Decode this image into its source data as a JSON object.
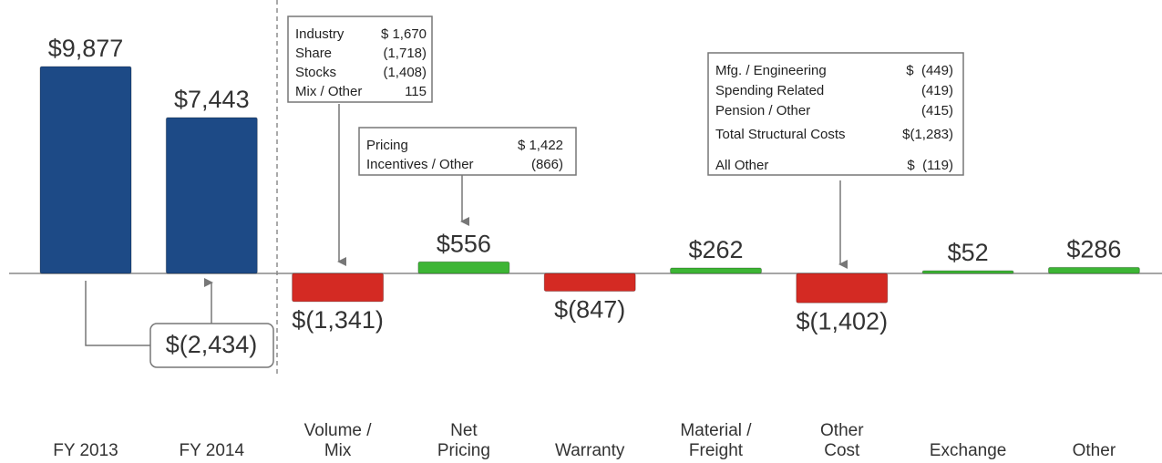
{
  "chart_data": {
    "type": "waterfall",
    "categories": [
      "FY 2013",
      "FY 2014",
      "Volume /\nMix",
      "Net\nPricing",
      "Warranty",
      "Material /\nFreight",
      "Other\nCost",
      "Exchange",
      "Other"
    ],
    "values": [
      9877,
      7443,
      -1341,
      556,
      -847,
      262,
      -1402,
      52,
      286
    ],
    "value_labels": [
      "$9,877",
      "$7,443",
      "$(1,341)",
      "$556",
      "$(847)",
      "$262",
      "$(1,402)",
      "$52",
      "$286"
    ],
    "colors": [
      "#1d4a86",
      "#1d4a86",
      "#d42a23",
      "#3db535",
      "#d42a23",
      "#3db535",
      "#d42a23",
      "#3db535",
      "#3db535"
    ],
    "change_label": "$(2,434)",
    "annotations": [
      {
        "rows": [
          [
            "Industry",
            "$ 1,670"
          ],
          [
            "Share",
            "(1,718)"
          ],
          [
            "Stocks",
            "(1,408)"
          ],
          [
            "Mix / Other",
            "115"
          ]
        ]
      },
      {
        "rows": [
          [
            "Pricing",
            "$ 1,422"
          ],
          [
            "Incentives / Other",
            "(866)"
          ]
        ]
      },
      {
        "rows": [
          [
            "Mfg. / Engineering",
            "$  (449)"
          ],
          [
            "Spending Related",
            "(419)"
          ],
          [
            "Pension / Other",
            "(415)"
          ],
          [
            "Total Structural Costs",
            "$(1,283)"
          ],
          [
            "All Other",
            "$  (119)"
          ]
        ]
      }
    ]
  }
}
